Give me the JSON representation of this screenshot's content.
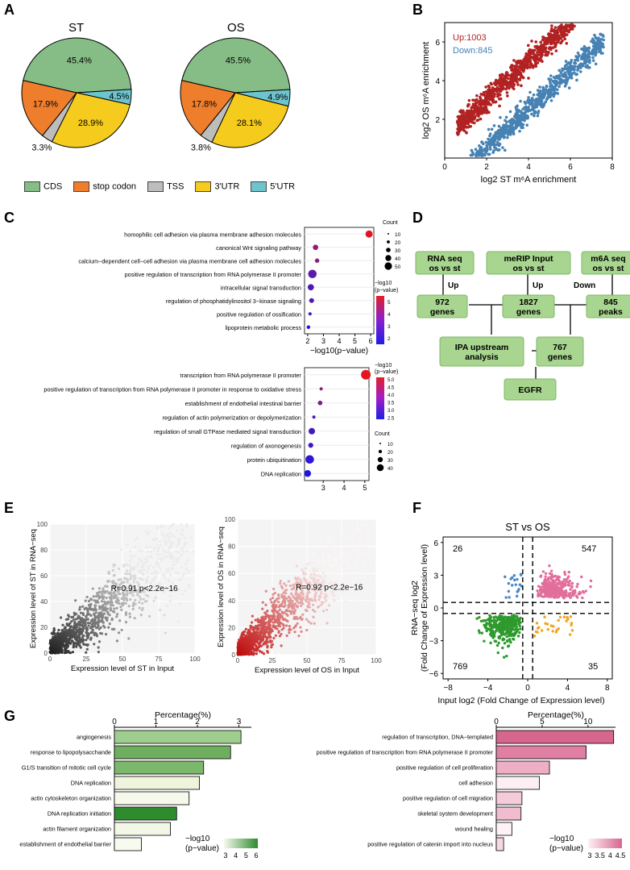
{
  "panels": {
    "A": "A",
    "B": "B",
    "C": "C",
    "D": "D",
    "E": "E",
    "F": "F",
    "G": "G"
  },
  "colors": {
    "cds": "#86bc86",
    "stop": "#ee7d2c",
    "tss": "#bdbdbd",
    "utr3": "#f5cc1d",
    "utr5": "#6dc4cf",
    "up": "#b22222",
    "down": "#4682b4"
  },
  "panelA": {
    "legend": [
      {
        "label": "CDS",
        "color": "#86bc86"
      },
      {
        "label": "stop codon",
        "color": "#ee7d2c"
      },
      {
        "label": "TSS",
        "color": "#bdbdbd"
      },
      {
        "label": "3'UTR",
        "color": "#f5cc1d"
      },
      {
        "label": "5'UTR",
        "color": "#6dc4cf"
      }
    ]
  },
  "chart_data": [
    {
      "type": "pie",
      "title": "ST",
      "slices": [
        {
          "label": "CDS",
          "value": 45.4,
          "text": "45.4%"
        },
        {
          "label": "5'UTR",
          "value": 4.5,
          "text": "4.5%"
        },
        {
          "label": "3'UTR",
          "value": 28.9,
          "text": "28.9%"
        },
        {
          "label": "TSS",
          "value": 3.3,
          "text": "3.3%"
        },
        {
          "label": "stop codon",
          "value": 17.9,
          "text": "17.9%"
        }
      ]
    },
    {
      "type": "pie",
      "title": "OS",
      "slices": [
        {
          "label": "CDS",
          "value": 45.5,
          "text": "45.5%"
        },
        {
          "label": "5'UTR",
          "value": 4.9,
          "text": "4.9%"
        },
        {
          "label": "3'UTR",
          "value": 28.1,
          "text": "28.1%"
        },
        {
          "label": "TSS",
          "value": 3.8,
          "text": "3.8%"
        },
        {
          "label": "stop codon",
          "value": 17.8,
          "text": "17.8%"
        }
      ]
    },
    {
      "type": "scatter",
      "panel": "B",
      "xlabel": "log2 ST m⁶A enrichment",
      "ylabel": "log2 OS m⁶A enrichment",
      "xlim": [
        0,
        8
      ],
      "ylim": [
        0,
        7
      ],
      "xticks": [
        "0",
        "2",
        "4",
        "6",
        "8"
      ],
      "yticks": [
        "2",
        "4",
        "6"
      ],
      "series": [
        {
          "name": "Up:1003",
          "count": 1003,
          "description": "points above diagonal"
        },
        {
          "name": "Down:845",
          "count": 845,
          "description": "points below diagonal"
        }
      ]
    },
    {
      "type": "scatter",
      "panel": "C-top",
      "xlabel": "−log10(p−value)",
      "xlim": [
        1.8,
        6.2
      ],
      "xticks": [
        "2",
        "3",
        "4",
        "5",
        "6"
      ],
      "terms": [
        {
          "term": "homophilic cell adhesion via plasma membrane adhesion molecules",
          "x": 5.9,
          "count": 40,
          "p": 5.9
        },
        {
          "term": "canonical Wnt signaling pathway",
          "x": 2.5,
          "count": 22,
          "p": 4.3
        },
        {
          "term": "calcium−dependent cell−cell adhesion via plasma membrane cell adhesion molecules",
          "x": 2.6,
          "count": 15,
          "p": 4.2
        },
        {
          "term": "positive regulation of transcription from RNA polymerase II promoter",
          "x": 2.3,
          "count": 55,
          "p": 3.2
        },
        {
          "term": "intracellular signal transduction",
          "x": 2.2,
          "count": 30,
          "p": 3.0
        },
        {
          "term": "regulation of phosphatidylinositol 3−kinase signaling",
          "x": 2.25,
          "count": 18,
          "p": 3.0
        },
        {
          "term": "positive regulation of ossification",
          "x": 2.15,
          "count": 8,
          "p": 2.6
        },
        {
          "term": "lipoprotein metabolic process",
          "x": 2.05,
          "count": 10,
          "p": 2.1
        }
      ],
      "legend_count_title": "Count",
      "legend_count_values": [
        "10",
        "20",
        "30",
        "40",
        "50"
      ],
      "legend_color_title": "−log10 (p−value)",
      "legend_color_ticks": [
        "5",
        "4",
        "3",
        "2"
      ]
    },
    {
      "type": "scatter",
      "panel": "C-bottom",
      "xlabel": "−log10(p−value)",
      "xlim": [
        2.1,
        5.2
      ],
      "xticks": [
        "3",
        "4",
        "5"
      ],
      "terms": [
        {
          "term": "transcription from RNA polymerase II promoter",
          "x": 5.05,
          "count": 45,
          "p": 5.0
        },
        {
          "term": "positive regulation of transcription from RNA polymerase II promoter in response to oxidative stress",
          "x": 2.9,
          "count": 5,
          "p": 3.8
        },
        {
          "term": "establishment of endothelial intestinal barrier",
          "x": 2.85,
          "count": 10,
          "p": 3.6
        },
        {
          "term": "regulation of actin polymerization or depolymerization",
          "x": 2.55,
          "count": 5,
          "p": 3.0
        },
        {
          "term": "regulation of small GTPase mediated signal transduction",
          "x": 2.45,
          "count": 20,
          "p": 2.9
        },
        {
          "term": "regulation of axonogenesis",
          "x": 2.4,
          "count": 12,
          "p": 2.8
        },
        {
          "term": "protein ubiquitination",
          "x": 2.35,
          "count": 35,
          "p": 2.6
        },
        {
          "term": "DNA replication",
          "x": 2.25,
          "count": 22,
          "p": 2.4
        }
      ],
      "legend_color_title": "−log10 (p−value)",
      "legend_color_ticks": [
        "5.0",
        "4.5",
        "4.0",
        "3.5",
        "3.0",
        "2.5"
      ],
      "legend_count_title": "Count",
      "legend_count_values": [
        "10",
        "20",
        "30",
        "40"
      ]
    },
    {
      "type": "scatter",
      "panel": "E-left",
      "xlabel": "Expression level of ST in Input",
      "ylabel": "Expression level of ST in RNA−seq",
      "xlim": [
        0,
        100
      ],
      "ylim": [
        0,
        100
      ],
      "xticks": [
        "0",
        "25",
        "50",
        "75",
        "100"
      ],
      "yticks": [
        "0",
        "20",
        "40",
        "60",
        "80",
        "100"
      ],
      "annotation": "R=0.91  p<2.2e−16"
    },
    {
      "type": "scatter",
      "panel": "E-right",
      "xlabel": "Expression level of OS in Input",
      "ylabel": "Expression level of OS in RNA−seq",
      "xlim": [
        0,
        100
      ],
      "ylim": [
        0,
        100
      ],
      "xticks": [
        "0",
        "25",
        "50",
        "75",
        "100"
      ],
      "yticks": [
        "0",
        "20",
        "40",
        "60",
        "80",
        "100"
      ],
      "annotation": "R=0.92  p<2.2e−16"
    },
    {
      "type": "scatter",
      "panel": "F",
      "title": "ST vs OS",
      "xlabel": "Input log2 (Fold Change of Expression level)",
      "ylabel_lines": [
        "RNA−seq log2",
        "(Fold Change of Expression level)"
      ],
      "xlim": [
        -8,
        8
      ],
      "ylim": [
        -6,
        6
      ],
      "xticks": [
        "−8",
        "−4",
        "0",
        "4",
        "8"
      ],
      "yticks": [
        "6",
        "3",
        "0",
        "−3",
        "−6"
      ],
      "quadrants": [
        {
          "label": "26",
          "count": 26,
          "quadrant": "top-left"
        },
        {
          "label": "547",
          "count": 547,
          "quadrant": "top-right"
        },
        {
          "label": "769",
          "count": 769,
          "quadrant": "bottom-left"
        },
        {
          "label": "35",
          "count": 35,
          "quadrant": "bottom-right"
        }
      ]
    },
    {
      "type": "bar",
      "panel": "G-left",
      "xlabel": "Percentage(%)",
      "xlim": [
        0,
        3.3
      ],
      "xticks": [
        "0",
        "1",
        "2",
        "3"
      ],
      "categories": [
        "angiogenesis",
        "response to lipopolysacchande",
        "G1/S transition of mitotic cell cycle",
        "DNA replication",
        "actin cytoskeleton organization",
        "DNA replication initiation",
        "actin filament organization",
        "establishment of endothelial barrier"
      ],
      "values": [
        3.05,
        2.8,
        2.15,
        2.05,
        1.8,
        1.5,
        1.35,
        0.65
      ],
      "colors": [
        "#9fcd8e",
        "#6fae5f",
        "#7cb86b",
        "#eef5dc",
        "#f5f8ea",
        "#2e8b2e",
        "#f3f7e5",
        "#f7faee"
      ],
      "legend_title": "−log10 (p−value)",
      "legend_ticks": [
        "3",
        "4",
        "5",
        "6"
      ]
    },
    {
      "type": "bar",
      "panel": "G-right",
      "xlabel": "Percentage(%)",
      "xlim": [
        0,
        13
      ],
      "xticks": [
        "0",
        "5",
        "10"
      ],
      "categories": [
        "regulation of transcription, DNA−templated",
        "positive regulation of transcription from RNA polymerase II promoter",
        "positive regulation of cell proliferation",
        "cell adhesion",
        "positive regulation of cell migration",
        "skeletal system development",
        "wound healing",
        "positive regulation of catenin import into nucleus"
      ],
      "values": [
        12.8,
        9.8,
        5.8,
        4.7,
        2.8,
        2.7,
        1.7,
        0.8
      ],
      "colors": [
        "#d7668f",
        "#e07ea3",
        "#eeafc6",
        "#fbeff3",
        "#f4cbd9",
        "#f1bcd0",
        "#fdf3f6",
        "#f7d7e3"
      ],
      "legend_title": "−log10 (p−value)",
      "legend_ticks": [
        "3",
        "3.5",
        "4",
        "4.5"
      ]
    }
  ],
  "panelB": {
    "up_label": "Up:1003",
    "down_label": "Down:845"
  },
  "panelD": {
    "nodes": {
      "rna": "RNA seq\nos vs st",
      "merip": "meRIP Input\nos vs st",
      "m6a": "m6A seq\nos vs st",
      "g972": "972\ngenes",
      "g1827": "1827\ngenes",
      "p845": "845\npeaks",
      "ipa": "IPA upstream\nanalysis",
      "g767": "767\ngenes",
      "egfr": "EGFR"
    },
    "edges": {
      "up1": "Up",
      "up2": "Up",
      "down": "Down"
    }
  }
}
